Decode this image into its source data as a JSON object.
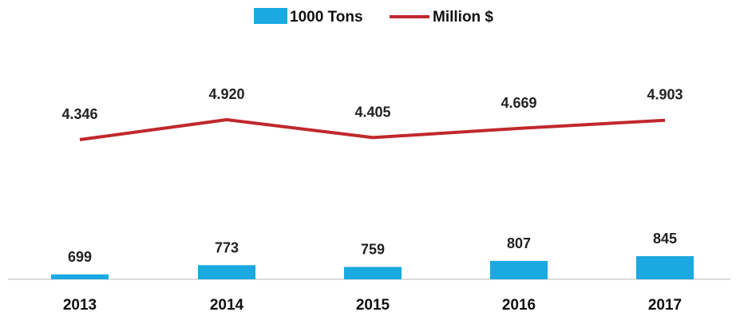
{
  "chart_data": {
    "type": "bar+line",
    "categories": [
      "2013",
      "2014",
      "2015",
      "2016",
      "2017"
    ],
    "series": [
      {
        "name": "1000 Tons",
        "type": "bar",
        "values": [
          699,
          773,
          759,
          807,
          845
        ],
        "labels": [
          "699",
          "773",
          "759",
          "807",
          "845"
        ],
        "color": "#1aa9e0"
      },
      {
        "name": "Million $",
        "type": "line",
        "values": [
          4.346,
          4.92,
          4.405,
          4.669,
          4.903
        ],
        "labels": [
          "4.346",
          "4.920",
          "4.405",
          "4.669",
          "4.903"
        ],
        "color": "#c0282d"
      }
    ],
    "legend": "top-center",
    "grid": false,
    "axis_color": "#d0d0d0"
  }
}
